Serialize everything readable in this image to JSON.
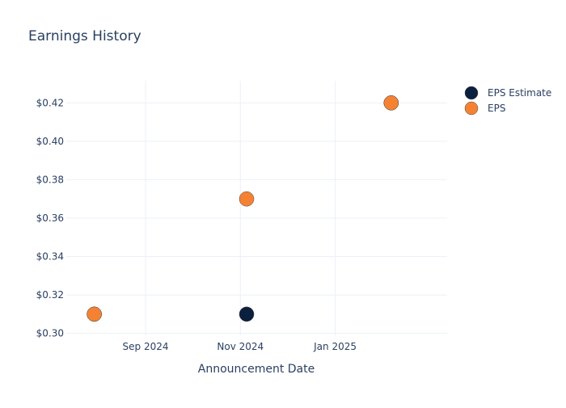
{
  "chart_data": {
    "type": "scatter",
    "title": "Earnings History",
    "xlabel": "Announcement Date",
    "ylabel": "",
    "x_ticks": [
      "Sep 2024",
      "Nov 2024",
      "Jan 2025"
    ],
    "y_ticks": [
      "$0.30",
      "$0.32",
      "$0.34",
      "$0.36",
      "$0.38",
      "$0.40",
      "$0.42"
    ],
    "xlim": [
      "2024-07-12",
      "2025-03-14"
    ],
    "ylim": [
      0.299,
      0.4315
    ],
    "grid": true,
    "legend_position": "top-right",
    "series": [
      {
        "name": "EPS Estimate",
        "color": "#0b1f3f",
        "points": [
          {
            "x": "2024-07-30",
            "y": 0.31
          },
          {
            "x": "2024-11-05",
            "y": 0.31
          },
          {
            "x": "2025-02-06",
            "y": 0.42
          }
        ]
      },
      {
        "name": "EPS",
        "color": "#f58233",
        "points": [
          {
            "x": "2024-07-30",
            "y": 0.31
          },
          {
            "x": "2024-11-05",
            "y": 0.37
          },
          {
            "x": "2025-02-06",
            "y": 0.42
          }
        ]
      }
    ]
  }
}
